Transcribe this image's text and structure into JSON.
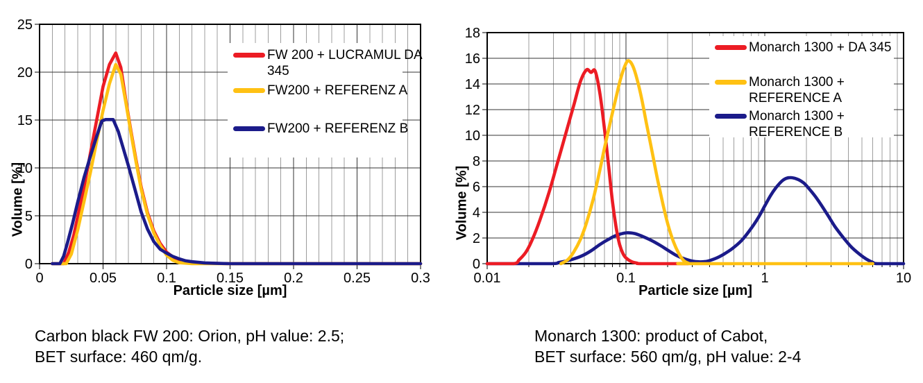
{
  "colors": {
    "red": "#ec1c24",
    "yellow": "#ffc113",
    "navy": "#1b1b8a",
    "grid_minor": "#9c9c9c",
    "grid_major": "#333333",
    "axis": "#000000",
    "background": "#ffffff"
  },
  "chart_data": [
    {
      "type": "line",
      "title": "",
      "xlabel": "Particle size [µm]",
      "ylabel": "Volume [%]",
      "xscale": "linear",
      "xlim": [
        0,
        0.3
      ],
      "ylim": [
        0,
        25
      ],
      "x_ticks": [
        0,
        0.05,
        0.1,
        0.15,
        0.2,
        0.25,
        0.3
      ],
      "x_tick_labels": [
        "0",
        "0.05",
        "0.1",
        "0.15",
        "0.2",
        "0.25",
        "0.3"
      ],
      "x_minor_step": 0.01,
      "y_ticks": [
        0,
        5,
        10,
        15,
        20,
        25
      ],
      "y_tick_step": 5,
      "grid": true,
      "legend_position": "upper right",
      "legend": [
        {
          "lines": [
            "FW 200 + LUCRAMUL DA",
            "345"
          ],
          "color": "#ec1c24"
        },
        {
          "lines": [
            "FW200 + REFERENZ A"
          ],
          "color": "#ffc113"
        },
        {
          "lines": [
            "FW200 + REFERENZ B"
          ],
          "color": "#1b1b8a"
        }
      ],
      "series": [
        {
          "name": "FW 200 + LUCRAMUL DA 345",
          "color": "#ec1c24",
          "smooth": false,
          "points": [
            [
              0.01,
              0
            ],
            [
              0.019,
              0
            ],
            [
              0.023,
              1.2
            ],
            [
              0.027,
              3
            ],
            [
              0.031,
              5.5
            ],
            [
              0.035,
              8
            ],
            [
              0.04,
              11.5
            ],
            [
              0.045,
              15
            ],
            [
              0.05,
              18.5
            ],
            [
              0.055,
              20.8
            ],
            [
              0.06,
              22
            ],
            [
              0.064,
              20.5
            ],
            [
              0.068,
              17
            ],
            [
              0.072,
              13.8
            ],
            [
              0.076,
              10.8
            ],
            [
              0.08,
              8
            ],
            [
              0.085,
              5.3
            ],
            [
              0.09,
              3.4
            ],
            [
              0.095,
              2.1
            ],
            [
              0.1,
              1.2
            ],
            [
              0.105,
              0.7
            ],
            [
              0.11,
              0.35
            ],
            [
              0.12,
              0.1
            ],
            [
              0.13,
              0.05
            ],
            [
              0.15,
              0
            ],
            [
              0.3,
              0
            ]
          ]
        },
        {
          "name": "FW200 + REFERENZ A",
          "color": "#ffc113",
          "smooth": false,
          "points": [
            [
              0.01,
              0
            ],
            [
              0.021,
              0
            ],
            [
              0.025,
              1
            ],
            [
              0.03,
              3.5
            ],
            [
              0.035,
              6.5
            ],
            [
              0.04,
              9.5
            ],
            [
              0.045,
              12.8
            ],
            [
              0.05,
              16
            ],
            [
              0.055,
              18.8
            ],
            [
              0.06,
              20.8
            ],
            [
              0.064,
              19.8
            ],
            [
              0.068,
              16.8
            ],
            [
              0.072,
              13.6
            ],
            [
              0.076,
              10.6
            ],
            [
              0.08,
              7.8
            ],
            [
              0.085,
              5.1
            ],
            [
              0.09,
              3.2
            ],
            [
              0.095,
              1.9
            ],
            [
              0.1,
              0.9
            ],
            [
              0.105,
              0.35
            ],
            [
              0.11,
              0.1
            ],
            [
              0.12,
              0
            ],
            [
              0.3,
              0
            ]
          ]
        },
        {
          "name": "FW200 + REFERENZ B",
          "color": "#1b1b8a",
          "smooth": false,
          "points": [
            [
              0.01,
              0
            ],
            [
              0.016,
              0
            ],
            [
              0.019,
              0.8
            ],
            [
              0.022,
              2.2
            ],
            [
              0.026,
              4.2
            ],
            [
              0.03,
              6.4
            ],
            [
              0.035,
              9
            ],
            [
              0.04,
              11.2
            ],
            [
              0.045,
              13.3
            ],
            [
              0.049,
              14.9
            ],
            [
              0.052,
              15.05
            ],
            [
              0.058,
              15.05
            ],
            [
              0.062,
              13.8
            ],
            [
              0.066,
              12
            ],
            [
              0.07,
              10.2
            ],
            [
              0.075,
              7.8
            ],
            [
              0.08,
              5.4
            ],
            [
              0.085,
              3.6
            ],
            [
              0.09,
              2.3
            ],
            [
              0.095,
              1.5
            ],
            [
              0.1,
              1.1
            ],
            [
              0.105,
              0.75
            ],
            [
              0.11,
              0.5
            ],
            [
              0.115,
              0.3
            ],
            [
              0.12,
              0.2
            ],
            [
              0.13,
              0.08
            ],
            [
              0.14,
              0.03
            ],
            [
              0.15,
              0
            ],
            [
              0.3,
              0
            ]
          ]
        }
      ],
      "caption_lines": [
        "Carbon black FW 200: Orion, pH value: 2.5;",
        "BET surface: 460 qm/g."
      ]
    },
    {
      "type": "line",
      "title": "",
      "xlabel": "Particle size [µm]",
      "ylabel": "Volume [%]",
      "xscale": "log",
      "xlim": [
        0.01,
        10
      ],
      "ylim": [
        0,
        18
      ],
      "x_ticks": [
        0.01,
        0.1,
        1,
        10
      ],
      "x_tick_labels": [
        "0.01",
        "0.1",
        "1",
        "10"
      ],
      "y_ticks": [
        0,
        2,
        4,
        6,
        8,
        10,
        12,
        14,
        16,
        18
      ],
      "y_tick_step": 2,
      "grid": true,
      "legend_position": "upper right",
      "legend": [
        {
          "lines": [
            "Monarch 1300 + DA 345"
          ],
          "color": "#ec1c24"
        },
        {
          "lines": [
            "Monarch 1300 +",
            "REFERENCE A"
          ],
          "color": "#ffc113"
        },
        {
          "lines": [
            "Monarch 1300 +",
            "REFERENCE B"
          ],
          "color": "#1b1b8a"
        }
      ],
      "series": [
        {
          "name": "Monarch 1300 + REFERENCE B",
          "color": "#1b1b8a",
          "smooth": true,
          "points": [
            [
              0.01,
              0
            ],
            [
              0.028,
              0
            ],
            [
              0.033,
              0.1
            ],
            [
              0.04,
              0.3
            ],
            [
              0.048,
              0.6
            ],
            [
              0.056,
              1
            ],
            [
              0.065,
              1.5
            ],
            [
              0.075,
              1.9
            ],
            [
              0.085,
              2.2
            ],
            [
              0.1,
              2.4
            ],
            [
              0.115,
              2.35
            ],
            [
              0.13,
              2.15
            ],
            [
              0.15,
              1.85
            ],
            [
              0.175,
              1.45
            ],
            [
              0.2,
              1.05
            ],
            [
              0.23,
              0.65
            ],
            [
              0.26,
              0.4
            ],
            [
              0.3,
              0.2
            ],
            [
              0.34,
              0.14
            ],
            [
              0.38,
              0.18
            ],
            [
              0.44,
              0.4
            ],
            [
              0.5,
              0.7
            ],
            [
              0.58,
              1.15
            ],
            [
              0.68,
              1.8
            ],
            [
              0.78,
              2.6
            ],
            [
              0.9,
              3.6
            ],
            [
              1.0,
              4.5
            ],
            [
              1.1,
              5.3
            ],
            [
              1.2,
              5.9
            ],
            [
              1.35,
              6.5
            ],
            [
              1.5,
              6.7
            ],
            [
              1.7,
              6.6
            ],
            [
              1.9,
              6.3
            ],
            [
              2.1,
              5.8
            ],
            [
              2.4,
              5.0
            ],
            [
              2.8,
              3.9
            ],
            [
              3.2,
              2.9
            ],
            [
              3.7,
              2.0
            ],
            [
              4.2,
              1.3
            ],
            [
              4.8,
              0.75
            ],
            [
              5.4,
              0.35
            ],
            [
              6.0,
              0.1
            ],
            [
              6.5,
              0
            ],
            [
              10,
              0
            ]
          ]
        },
        {
          "name": "Monarch 1300 + DA 345",
          "color": "#ec1c24",
          "smooth": true,
          "points": [
            [
              0.01,
              0
            ],
            [
              0.0155,
              0
            ],
            [
              0.017,
              0.3
            ],
            [
              0.019,
              0.9
            ],
            [
              0.021,
              1.8
            ],
            [
              0.024,
              3.4
            ],
            [
              0.028,
              5.6
            ],
            [
              0.032,
              7.8
            ],
            [
              0.037,
              10.2
            ],
            [
              0.042,
              12.3
            ],
            [
              0.047,
              14.2
            ],
            [
              0.052,
              15.1
            ],
            [
              0.056,
              14.9
            ],
            [
              0.06,
              15.0
            ],
            [
              0.065,
              13.2
            ],
            [
              0.07,
              10.5
            ],
            [
              0.075,
              7.6
            ],
            [
              0.08,
              4.8
            ],
            [
              0.085,
              2.8
            ],
            [
              0.09,
              1.5
            ],
            [
              0.095,
              0.8
            ],
            [
              0.1,
              0.45
            ],
            [
              0.11,
              0.15
            ],
            [
              0.12,
              0.05
            ],
            [
              0.13,
              0
            ],
            [
              0.28,
              0
            ]
          ]
        },
        {
          "name": "Monarch 1300 + REFERENCE A",
          "color": "#ffc113",
          "smooth": true,
          "points": [
            [
              0.034,
              0
            ],
            [
              0.038,
              0.3
            ],
            [
              0.042,
              0.9
            ],
            [
              0.047,
              1.9
            ],
            [
              0.052,
              3.2
            ],
            [
              0.058,
              5
            ],
            [
              0.064,
              7
            ],
            [
              0.07,
              9
            ],
            [
              0.077,
              11
            ],
            [
              0.085,
              13
            ],
            [
              0.092,
              14.5
            ],
            [
              0.1,
              15.6
            ],
            [
              0.105,
              15.8
            ],
            [
              0.112,
              15.4
            ],
            [
              0.12,
              14.4
            ],
            [
              0.13,
              12.8
            ],
            [
              0.14,
              11
            ],
            [
              0.155,
              8.6
            ],
            [
              0.17,
              6.4
            ],
            [
              0.185,
              4.6
            ],
            [
              0.2,
              3.1
            ],
            [
              0.22,
              1.7
            ],
            [
              0.24,
              0.8
            ],
            [
              0.26,
              0.25
            ],
            [
              0.28,
              0.05
            ],
            [
              0.3,
              0
            ],
            [
              6,
              0
            ]
          ]
        }
      ],
      "caption_lines": [
        "Monarch 1300: product of Cabot,",
        "BET surface: 560 qm/g, pH value: 2-4"
      ]
    }
  ]
}
